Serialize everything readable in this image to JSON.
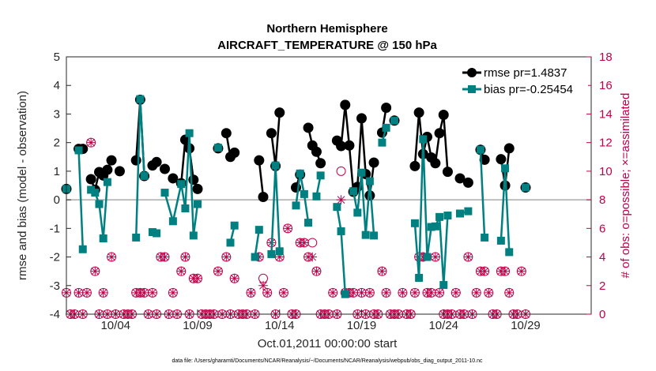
{
  "chart_data": {
    "type": "line",
    "title": "Northern Hemisphere",
    "subtitle": "AIRCRAFT_TEMPERATURE @ 150 hPa",
    "xlabel": "Oct.01,2011 00:00:00 start",
    "ylabel": "rmse and bias (model - observation)",
    "y2label": "# of obs: o=possible; ×=assimilated",
    "footer": "data file: /Users/gharamti/Documents/NCAR/Reanalysis/~/Documents/NCAR/Reanalysis/webpub/obs_diag_output_2011-10.nc",
    "xlim": [
      1,
      33
    ],
    "ylim": [
      -4,
      5
    ],
    "y2lim": [
      0,
      18
    ],
    "x_ticks": [
      4,
      9,
      14,
      19,
      24,
      29
    ],
    "x_tick_labels": [
      "10/04",
      "10/09",
      "10/14",
      "10/19",
      "10/24",
      "10/29"
    ],
    "y_ticks": [
      -4,
      -3,
      -2,
      -1,
      0,
      1,
      2,
      3,
      4,
      5
    ],
    "y2_ticks": [
      0,
      2,
      4,
      6,
      8,
      10,
      12,
      14,
      16,
      18
    ],
    "legend": {
      "position": "top-right",
      "entries": [
        "rmse pr=1.4837",
        "bias pr=-0.25454"
      ]
    },
    "colors": {
      "rmse": "#000000",
      "bias": "#008080",
      "obs": "#c0004a",
      "zero_line": "#aaaaaa"
    },
    "series": [
      {
        "name": "rmse pr=1.4837",
        "color": "#000000",
        "points": [
          [
            1.0,
            0.38
          ],
          null,
          [
            1.75,
            1.78
          ],
          [
            2.0,
            1.78
          ],
          null,
          [
            2.5,
            0.72
          ],
          [
            2.75,
            0.35
          ],
          [
            3.0,
            0.97
          ],
          [
            3.25,
            0.85
          ],
          [
            3.5,
            1.05
          ],
          [
            3.75,
            1.38
          ],
          null,
          [
            4.25,
            1.0
          ],
          null,
          null,
          [
            5.25,
            1.38
          ],
          [
            5.5,
            3.5
          ],
          [
            5.75,
            0.83
          ],
          null,
          [
            6.25,
            1.2
          ],
          [
            6.5,
            1.32
          ],
          null,
          [
            7.0,
            1.08
          ],
          null,
          [
            7.5,
            0.75
          ],
          null,
          [
            8.0,
            0.58
          ],
          [
            8.25,
            2.1
          ],
          [
            8.5,
            1.8
          ],
          [
            8.75,
            0.7
          ],
          [
            9.0,
            0.38
          ],
          null,
          null,
          null,
          [
            10.25,
            1.8
          ],
          null,
          [
            10.75,
            2.33
          ],
          [
            11.0,
            1.5
          ],
          [
            11.25,
            1.65
          ],
          null,
          null,
          null,
          [
            12.75,
            1.38
          ],
          [
            13.0,
            0.1
          ],
          null,
          [
            13.5,
            2.33
          ],
          [
            13.75,
            1.18
          ],
          [
            14.0,
            3.05
          ],
          null,
          null,
          [
            15.0,
            0.43
          ],
          [
            15.25,
            0.88
          ],
          null,
          [
            15.75,
            2.52
          ],
          [
            16.0,
            1.9
          ],
          [
            16.25,
            1.68
          ],
          [
            16.5,
            1.28
          ],
          null,
          null,
          [
            17.5,
            2.07
          ],
          [
            17.75,
            1.88
          ],
          [
            18.0,
            3.32
          ],
          [
            18.25,
            1.9
          ],
          [
            18.5,
            0.28
          ],
          [
            18.75,
            0.45
          ],
          [
            19.0,
            2.85
          ],
          [
            19.25,
            0.9
          ],
          [
            19.5,
            0.15
          ],
          [
            19.75,
            1.3
          ],
          null,
          [
            20.25,
            2.35
          ],
          [
            20.5,
            3.22
          ],
          null,
          [
            21.0,
            2.77
          ],
          null,
          null,
          [
            22.25,
            1.18
          ],
          [
            22.5,
            3.05
          ],
          [
            22.75,
            1.6
          ],
          [
            23.0,
            2.2
          ],
          [
            23.25,
            1.48
          ],
          [
            23.5,
            1.28
          ],
          [
            23.75,
            2.33
          ],
          [
            24.0,
            2.97
          ],
          [
            24.25,
            0.98
          ],
          null,
          [
            25.0,
            0.75
          ],
          [
            25.5,
            0.6
          ],
          null,
          [
            26.25,
            1.75
          ],
          [
            26.5,
            1.4
          ],
          null,
          null,
          [
            27.5,
            1.42
          ],
          [
            27.75,
            0.5
          ],
          [
            28.0,
            1.8
          ],
          null,
          null,
          [
            29.0,
            0.43
          ]
        ]
      },
      {
        "name": "bias pr=-0.25454",
        "color": "#008080",
        "points": [
          [
            1.0,
            0.38
          ],
          null,
          [
            1.75,
            1.73
          ],
          [
            2.0,
            -1.73
          ],
          null,
          [
            2.5,
            0.35
          ],
          [
            2.75,
            0.25
          ],
          [
            3.0,
            -0.15
          ],
          [
            3.25,
            -1.35
          ],
          [
            3.5,
            0.62
          ],
          null,
          [
            5.25,
            -1.32
          ],
          [
            5.5,
            3.52
          ],
          [
            5.75,
            0.83
          ],
          null,
          [
            6.25,
            -1.13
          ],
          [
            6.5,
            -1.17
          ],
          null,
          [
            7.0,
            0.25
          ],
          [
            7.5,
            -0.75
          ],
          [
            8.0,
            0.55
          ],
          [
            8.25,
            -0.3
          ],
          [
            8.5,
            2.33
          ],
          [
            8.75,
            -1.25
          ],
          [
            9.0,
            -0.15
          ],
          null,
          [
            10.25,
            1.82
          ],
          null,
          [
            11.0,
            -1.5
          ],
          [
            11.25,
            -0.9
          ],
          null,
          [
            12.5,
            -2.0
          ],
          [
            12.75,
            -1.05
          ],
          null,
          [
            13.5,
            -1.9
          ],
          [
            13.75,
            1.2
          ],
          [
            14.0,
            -1.8
          ],
          null,
          [
            15.0,
            -0.2
          ],
          [
            15.25,
            0.92
          ],
          [
            15.5,
            0.2
          ],
          [
            15.75,
            -0.8
          ],
          null,
          [
            16.25,
            0.12
          ],
          [
            16.5,
            0.85
          ],
          null,
          [
            17.5,
            -0.25
          ],
          [
            17.75,
            -1.1
          ],
          [
            18.0,
            -3.3
          ],
          null,
          [
            18.5,
            0.3
          ],
          [
            18.75,
            -0.45
          ],
          [
            19.0,
            0.95
          ],
          [
            19.25,
            -1.23
          ],
          [
            19.5,
            0.65
          ],
          [
            19.75,
            -1.25
          ],
          null,
          [
            20.25,
            2.0
          ],
          [
            20.5,
            2.52
          ],
          null,
          [
            21.0,
            2.77
          ],
          null,
          [
            22.25,
            -0.82
          ],
          [
            22.5,
            -2.73
          ],
          [
            22.75,
            2.12
          ],
          [
            23.0,
            -2.0
          ],
          [
            23.25,
            -0.95
          ],
          [
            23.5,
            -0.93
          ],
          [
            23.75,
            -0.6
          ],
          [
            24.0,
            -2.98
          ],
          [
            24.25,
            -0.55
          ],
          null,
          [
            25.0,
            -0.48
          ],
          [
            25.5,
            -0.4
          ],
          null,
          [
            26.25,
            1.75
          ],
          [
            26.5,
            -1.32
          ],
          null,
          [
            27.5,
            -1.43
          ],
          [
            27.75,
            1.1
          ],
          [
            28.0,
            -1.83
          ],
          null,
          null,
          [
            29.0,
            0.43
          ]
        ]
      }
    ],
    "obs_possible": [
      [
        1.0,
        1.5
      ],
      [
        1.25,
        0
      ],
      [
        1.5,
        0
      ],
      [
        1.75,
        1.5
      ],
      [
        2.0,
        0
      ],
      [
        2.25,
        1.5
      ],
      [
        2.5,
        12
      ],
      [
        2.75,
        3
      ],
      [
        3.0,
        0
      ],
      [
        3.25,
        1.5
      ],
      [
        3.5,
        0
      ],
      [
        3.75,
        4
      ],
      [
        4.0,
        0
      ],
      [
        4.5,
        0
      ],
      [
        4.75,
        0
      ],
      [
        5.0,
        0
      ],
      [
        5.25,
        1.5
      ],
      [
        5.5,
        1.5
      ],
      [
        5.75,
        1.5
      ],
      [
        6.0,
        0
      ],
      [
        6.25,
        1.5
      ],
      [
        6.5,
        0
      ],
      [
        6.75,
        4
      ],
      [
        7.0,
        4
      ],
      [
        7.25,
        0
      ],
      [
        7.5,
        1.5
      ],
      [
        7.75,
        0
      ],
      [
        8.0,
        3
      ],
      [
        8.25,
        4
      ],
      [
        8.5,
        0
      ],
      [
        8.75,
        2.5
      ],
      [
        9.0,
        2.5
      ],
      [
        9.25,
        0
      ],
      [
        9.5,
        0
      ],
      [
        9.75,
        0
      ],
      [
        10.0,
        0
      ],
      [
        10.25,
        3
      ],
      [
        10.5,
        0
      ],
      [
        10.75,
        4
      ],
      [
        11.0,
        0
      ],
      [
        11.25,
        2.5
      ],
      [
        11.5,
        0
      ],
      [
        11.75,
        0
      ],
      [
        12.0,
        0
      ],
      [
        12.25,
        1.5
      ],
      [
        12.5,
        0
      ],
      [
        12.75,
        4
      ],
      [
        13.0,
        2.5
      ],
      [
        13.25,
        1.5
      ],
      [
        13.5,
        5
      ],
      [
        13.75,
        0
      ],
      [
        14.0,
        4
      ],
      [
        14.25,
        1.5
      ],
      [
        14.5,
        6
      ],
      [
        14.75,
        0
      ],
      [
        15.0,
        0
      ],
      [
        15.25,
        5
      ],
      [
        15.5,
        5
      ],
      [
        15.75,
        4
      ],
      [
        16.0,
        5
      ],
      [
        16.25,
        3
      ],
      [
        16.5,
        0
      ],
      [
        16.75,
        0
      ],
      [
        17.0,
        0
      ],
      [
        17.25,
        1.5
      ],
      [
        17.5,
        0
      ],
      [
        17.75,
        10
      ],
      [
        18.0,
        1.5
      ],
      [
        18.25,
        1.5
      ],
      [
        18.5,
        1.5
      ],
      [
        18.75,
        0
      ],
      [
        19.0,
        1.5
      ],
      [
        19.25,
        0
      ],
      [
        19.5,
        1.5
      ],
      [
        19.75,
        0
      ],
      [
        20.0,
        0
      ],
      [
        20.25,
        3
      ],
      [
        20.5,
        1.5
      ],
      [
        20.75,
        0
      ],
      [
        21.0,
        0
      ],
      [
        21.25,
        0
      ],
      [
        21.5,
        1.5
      ],
      [
        21.75,
        0
      ],
      [
        22.0,
        0
      ],
      [
        22.25,
        1.5
      ],
      [
        22.5,
        4
      ],
      [
        22.75,
        4
      ],
      [
        23.0,
        1.5
      ],
      [
        23.25,
        1.5
      ],
      [
        23.5,
        4
      ],
      [
        23.75,
        1.5
      ],
      [
        24.0,
        0
      ],
      [
        24.25,
        0
      ],
      [
        24.5,
        0
      ],
      [
        24.75,
        1.5
      ],
      [
        25.0,
        0
      ],
      [
        25.25,
        0
      ],
      [
        25.5,
        4
      ],
      [
        25.75,
        0
      ],
      [
        26.0,
        1.5
      ],
      [
        26.25,
        3
      ],
      [
        26.5,
        3
      ],
      [
        26.75,
        1.5
      ],
      [
        27.0,
        0
      ],
      [
        27.25,
        0
      ],
      [
        27.5,
        3
      ],
      [
        27.75,
        3
      ],
      [
        28.0,
        1.5
      ],
      [
        28.25,
        0
      ],
      [
        28.5,
        0
      ],
      [
        28.75,
        3
      ],
      [
        29.0,
        0
      ]
    ],
    "obs_assimilated": [
      [
        1.0,
        1.5
      ],
      [
        1.25,
        0
      ],
      [
        1.5,
        0
      ],
      [
        1.75,
        1.5
      ],
      [
        2.0,
        0
      ],
      [
        2.25,
        1.5
      ],
      [
        2.5,
        12
      ],
      [
        2.75,
        3
      ],
      [
        3.0,
        0
      ],
      [
        3.25,
        1.5
      ],
      [
        3.5,
        0
      ],
      [
        3.75,
        4
      ],
      [
        4.0,
        0
      ],
      [
        4.5,
        0
      ],
      [
        4.75,
        0
      ],
      [
        5.0,
        0
      ],
      [
        5.25,
        1.5
      ],
      [
        5.5,
        1.5
      ],
      [
        5.75,
        1.5
      ],
      [
        6.0,
        0
      ],
      [
        6.25,
        1.5
      ],
      [
        6.5,
        0
      ],
      [
        6.75,
        4
      ],
      [
        7.0,
        4
      ],
      [
        7.25,
        0
      ],
      [
        7.5,
        1.5
      ],
      [
        7.75,
        0
      ],
      [
        8.0,
        3
      ],
      [
        8.25,
        4
      ],
      [
        8.5,
        0
      ],
      [
        8.75,
        2.5
      ],
      [
        9.0,
        2.5
      ],
      [
        9.25,
        0
      ],
      [
        9.5,
        0
      ],
      [
        9.75,
        0
      ],
      [
        10.0,
        0
      ],
      [
        10.25,
        3
      ],
      [
        10.5,
        0
      ],
      [
        10.75,
        4
      ],
      [
        11.0,
        0
      ],
      [
        11.25,
        2.5
      ],
      [
        11.5,
        0
      ],
      [
        11.75,
        0
      ],
      [
        12.0,
        0
      ],
      [
        12.25,
        1.5
      ],
      [
        12.5,
        0
      ],
      [
        12.75,
        4
      ],
      [
        13.0,
        2
      ],
      [
        13.25,
        1.5
      ],
      [
        13.5,
        5
      ],
      [
        13.75,
        0
      ],
      [
        14.0,
        4
      ],
      [
        14.25,
        1.5
      ],
      [
        14.5,
        6
      ],
      [
        14.75,
        0
      ],
      [
        15.0,
        0
      ],
      [
        15.25,
        5
      ],
      [
        15.5,
        5
      ],
      [
        15.75,
        4
      ],
      [
        16.0,
        4
      ],
      [
        16.25,
        3
      ],
      [
        16.5,
        0
      ],
      [
        16.75,
        0
      ],
      [
        17.0,
        0
      ],
      [
        17.25,
        1.5
      ],
      [
        17.5,
        0
      ],
      [
        17.75,
        8
      ],
      [
        18.0,
        1.5
      ],
      [
        18.25,
        1.5
      ],
      [
        18.5,
        1.5
      ],
      [
        18.75,
        0
      ],
      [
        19.0,
        1.5
      ],
      [
        19.25,
        0
      ],
      [
        19.5,
        1.5
      ],
      [
        19.75,
        0
      ],
      [
        20.0,
        0
      ],
      [
        20.25,
        3
      ],
      [
        20.5,
        1.5
      ],
      [
        20.75,
        0
      ],
      [
        21.0,
        0
      ],
      [
        21.25,
        0
      ],
      [
        21.5,
        1.5
      ],
      [
        21.75,
        0
      ],
      [
        22.0,
        0
      ],
      [
        22.25,
        1.5
      ],
      [
        22.5,
        4
      ],
      [
        22.75,
        4
      ],
      [
        23.0,
        1.5
      ],
      [
        23.25,
        1.5
      ],
      [
        23.5,
        4
      ],
      [
        23.75,
        1.5
      ],
      [
        24.0,
        0
      ],
      [
        24.25,
        0
      ],
      [
        24.5,
        0
      ],
      [
        24.75,
        1.5
      ],
      [
        25.0,
        0
      ],
      [
        25.25,
        0
      ],
      [
        25.5,
        4
      ],
      [
        25.75,
        0
      ],
      [
        26.0,
        1.5
      ],
      [
        26.25,
        3
      ],
      [
        26.5,
        3
      ],
      [
        26.75,
        1.5
      ],
      [
        27.0,
        0
      ],
      [
        27.25,
        0
      ],
      [
        27.5,
        3
      ],
      [
        27.75,
        3
      ],
      [
        28.0,
        1.5
      ],
      [
        28.25,
        0
      ],
      [
        28.5,
        0
      ],
      [
        28.75,
        3
      ],
      [
        29.0,
        0
      ]
    ]
  }
}
